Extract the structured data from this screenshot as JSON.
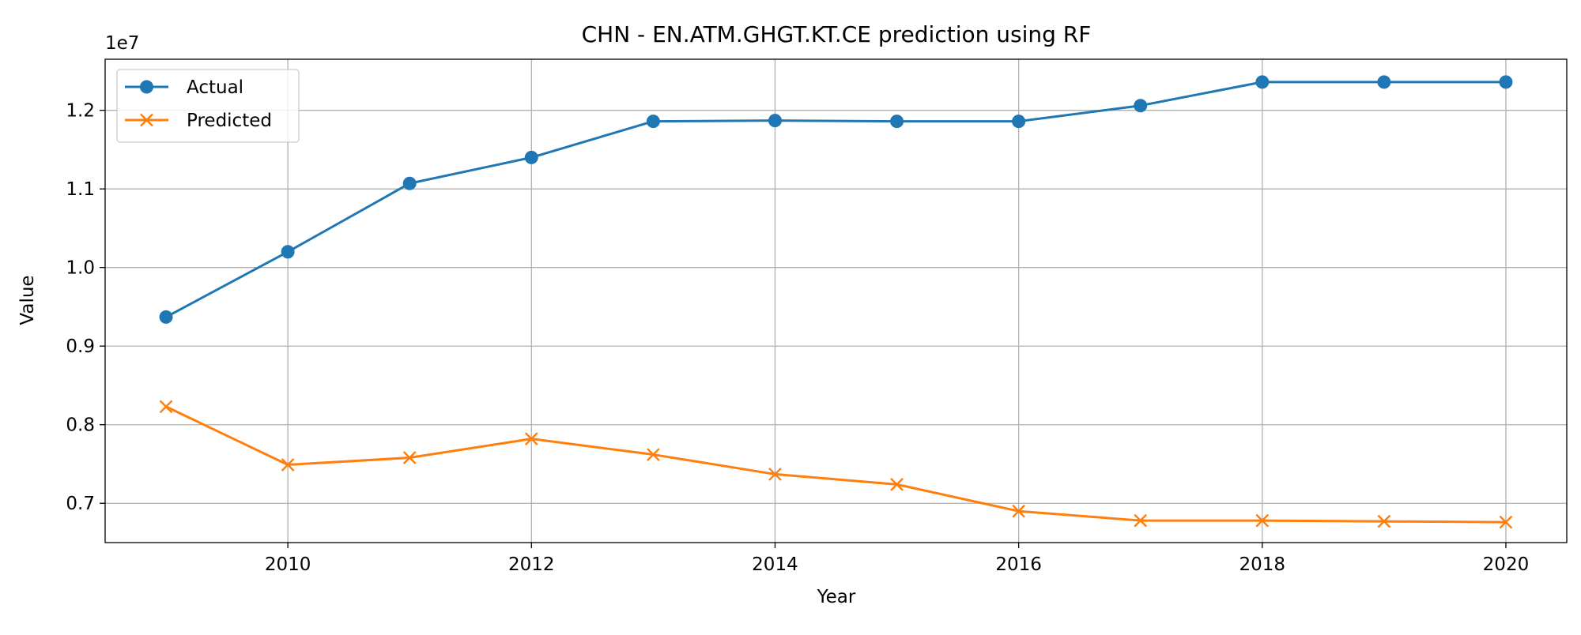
{
  "chart_data": {
    "type": "line",
    "title": "CHN - EN.ATM.GHGT.KT.CE prediction using RF",
    "xlabel": "Year",
    "ylabel": "Value",
    "y_offset_label": "1e7",
    "y_scale_multiplier": 10000000,
    "xlim": [
      2008.5,
      2020.5
    ],
    "ylim": [
      6.5,
      12.65
    ],
    "x_ticks": [
      2010,
      2012,
      2014,
      2016,
      2018,
      2020
    ],
    "y_ticks": [
      0.7,
      0.8,
      0.9,
      1.0,
      1.1,
      1.2
    ],
    "y_tick_labels": [
      "0.7",
      "0.8",
      "0.9",
      "1.0",
      "1.1",
      "1.2"
    ],
    "grid": true,
    "legend_position": "top-left",
    "x": [
      2009,
      2010,
      2011,
      2012,
      2013,
      2014,
      2015,
      2016,
      2017,
      2018,
      2019,
      2020
    ],
    "series": [
      {
        "name": "Actual",
        "color": "#1f77b4",
        "marker": "circle",
        "values": [
          9.37,
          10.2,
          11.07,
          11.4,
          11.86,
          11.87,
          11.86,
          11.86,
          12.06,
          12.36,
          12.36,
          12.36
        ]
      },
      {
        "name": "Predicted",
        "color": "#ff7f0e",
        "marker": "x",
        "values": [
          8.23,
          7.49,
          7.58,
          7.82,
          7.62,
          7.37,
          7.24,
          6.9,
          6.78,
          6.78,
          6.77,
          6.76
        ]
      }
    ]
  }
}
